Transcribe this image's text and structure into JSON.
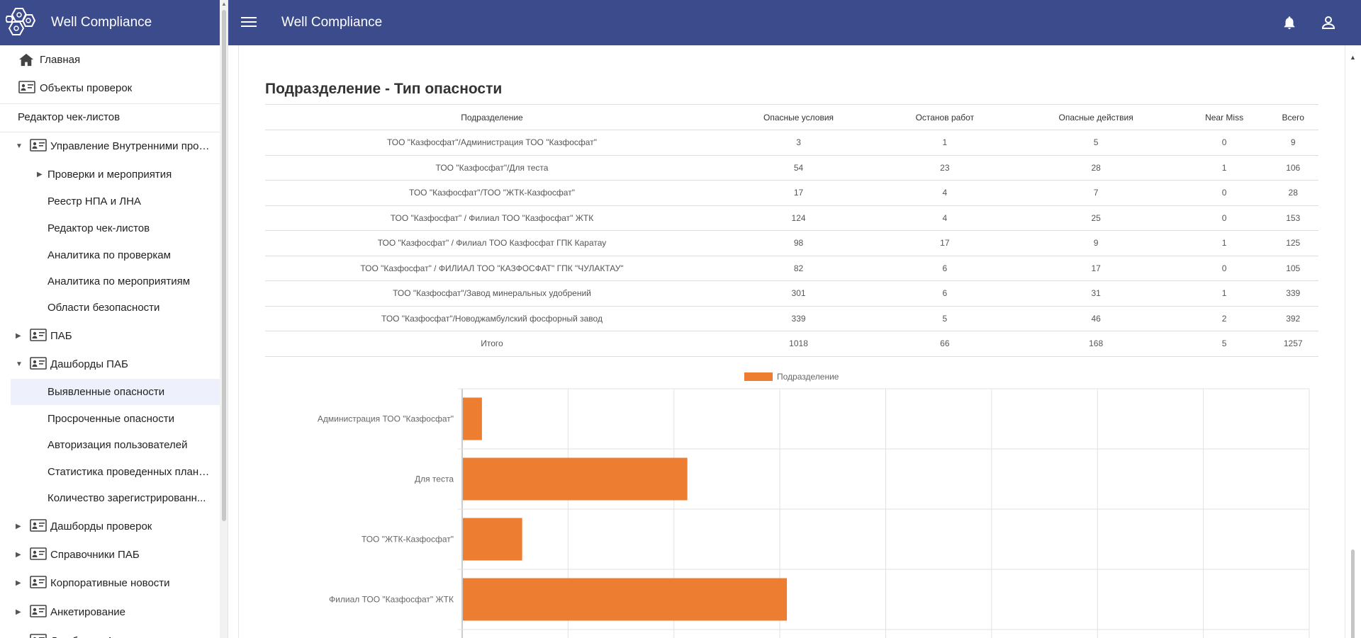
{
  "app": {
    "title": "Well Compliance"
  },
  "sidebar": {
    "items": [
      {
        "label": "Главная",
        "icon": "home-icon"
      },
      {
        "label": "Объекты проверок",
        "icon": "id-card-icon"
      },
      {
        "label": "Редактор чек-листов"
      },
      {
        "label": "Управление Внутренними прове...",
        "icon": "id-card-icon",
        "expanded": true
      },
      {
        "label": "Проверки и мероприятия",
        "collapsed": true
      },
      {
        "label": "Реестр НПА и ЛНА"
      },
      {
        "label": "Редактор чек-листов"
      },
      {
        "label": "Аналитика по проверкам"
      },
      {
        "label": "Аналитика по мероприятиям"
      },
      {
        "label": "Области безопасности"
      },
      {
        "label": "ПАБ",
        "icon": "id-card-icon"
      },
      {
        "label": "Дашборды ПАБ",
        "icon": "id-card-icon",
        "expanded": true
      },
      {
        "label": "Выявленные опасности",
        "active": true
      },
      {
        "label": "Просроченные опасности"
      },
      {
        "label": "Авторизация пользователей"
      },
      {
        "label": "Статистика проведенных плано..."
      },
      {
        "label": "Количество зарегистрированн..."
      },
      {
        "label": "Дашборды проверок",
        "icon": "id-card-icon"
      },
      {
        "label": "Справочники ПАБ",
        "icon": "id-card-icon"
      },
      {
        "label": "Корпоративные новости",
        "icon": "id-card-icon"
      },
      {
        "label": "Анкетирование",
        "icon": "id-card-icon"
      },
      {
        "label": "Дашборды Анкетирования",
        "icon": "id-card-icon"
      }
    ]
  },
  "header": {
    "title": "Well Compliance",
    "bell_icon": "bell-icon",
    "user_icon": "user-icon"
  },
  "section": {
    "title": "Подразделение - Тип опасности"
  },
  "table": {
    "headers": [
      "Подразделение",
      "Опасные условия",
      "Останов работ",
      "Опасные действия",
      "Near Miss",
      "Всего"
    ],
    "rows": [
      [
        "ТОО \"Казфосфат\"/Администрация ТОО \"Казфосфат\"",
        "3",
        "1",
        "5",
        "0",
        "9"
      ],
      [
        "ТОО \"Казфосфат\"/Для теста",
        "54",
        "23",
        "28",
        "1",
        "106"
      ],
      [
        "ТОО \"Казфосфат\"/ТОО \"ЖТК-Казфосфат\"",
        "17",
        "4",
        "7",
        "0",
        "28"
      ],
      [
        "ТОО \"Казфосфат\" / Филиал ТОО \"Казфосфат\" ЖТК",
        "124",
        "4",
        "25",
        "0",
        "153"
      ],
      [
        "ТОО \"Казфосфат\" / Филиал ТОО Казфосфат ГПК Каратау",
        "98",
        "17",
        "9",
        "1",
        "125"
      ],
      [
        "ТОО \"Казфосфат\" / ФИЛИАЛ ТОО \"КАЗФОСФАТ\" ГПК \"ЧУЛАКТАУ\"",
        "82",
        "6",
        "17",
        "0",
        "105"
      ],
      [
        "ТОО \"Казфосфат\"/Завод минеральных удобрений",
        "301",
        "6",
        "31",
        "1",
        "339"
      ],
      [
        "ТОО \"Казфосфат\"/Новоджамбулский фосфорный завод",
        "339",
        "5",
        "46",
        "2",
        "392"
      ],
      [
        "Итого",
        "1018",
        "66",
        "168",
        "5",
        "1257"
      ]
    ]
  },
  "chart_data": {
    "type": "bar",
    "orientation": "horizontal",
    "legend": "Подразделение",
    "legend_position": "top",
    "color": "#ed7d31",
    "grid": true,
    "categories": [
      "Администрация ТОО \"Казфосфат\"",
      "Для теста",
      "ТОО \"ЖТК-Казфосфат\"",
      "Филиал ТОО \"Казфосфат\" ЖТК"
    ],
    "values": [
      9,
      106,
      28,
      153
    ],
    "xlim": [
      0,
      400
    ]
  }
}
